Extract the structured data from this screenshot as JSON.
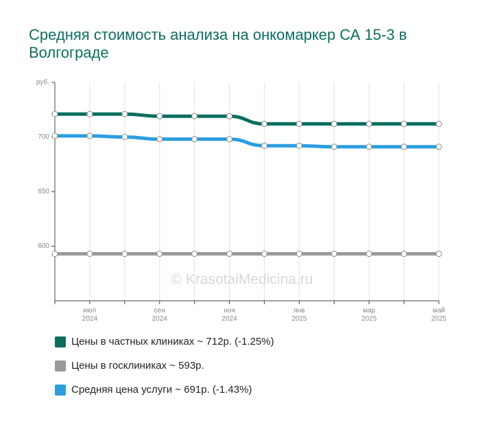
{
  "chart_data": {
    "type": "line",
    "title": "Средняя стоимость анализа на онкомаркер СА 15-3 в Волгограде",
    "watermark": "© KrasotaiMedicina.ru",
    "categories": [
      null,
      "июл 2024",
      null,
      "сен 2024",
      null,
      "ноя 2024",
      null,
      "янв 2025",
      null,
      "мар 2025",
      null,
      "май 2025"
    ],
    "series": [
      {
        "name": "Цены в частных клиниках ~ 712р. (-1.25%)",
        "color": "#0a6e5f",
        "values": [
          721,
          721,
          721,
          719,
          719,
          719,
          712,
          712,
          712,
          712,
          712,
          712
        ]
      },
      {
        "name": "Цены в госклиниках ~ 593р.",
        "color": "#999999",
        "values": [
          593,
          593,
          593,
          593,
          593,
          593,
          593,
          593,
          593,
          593,
          593,
          593
        ]
      },
      {
        "name": "Средняя цена услуги ~ 691р. (-1.43%)",
        "color": "#2a9fe0",
        "values": [
          701,
          701,
          700,
          698,
          698,
          698,
          692,
          692,
          691,
          691,
          691,
          691
        ]
      }
    ],
    "ylim": [
      550,
      750
    ],
    "yticks": [
      600,
      650,
      700,
      {
        "value": 750,
        "label": "руб."
      }
    ],
    "grid": true
  }
}
